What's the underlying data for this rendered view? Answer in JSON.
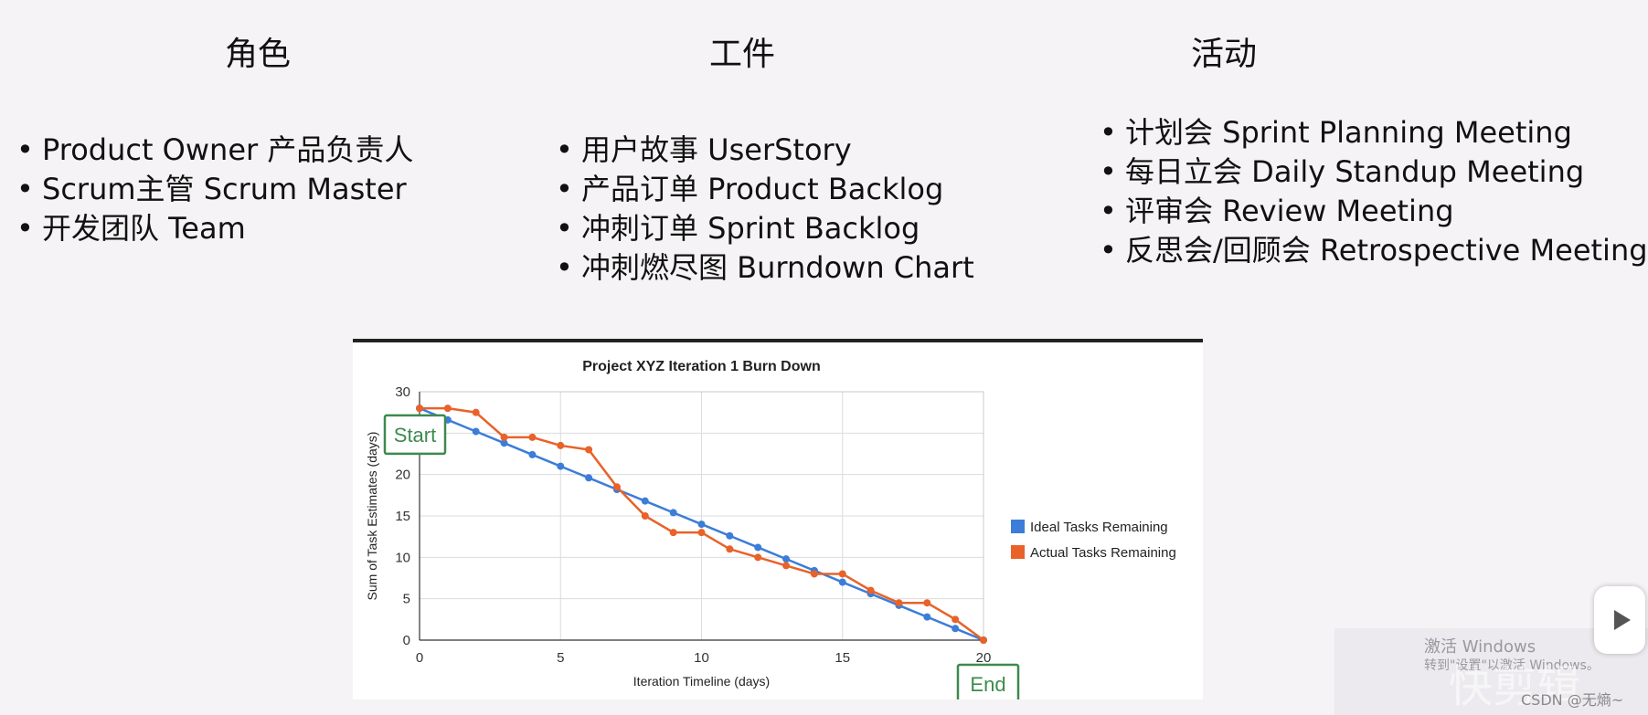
{
  "columns": [
    {
      "title": "角色",
      "items": [
        "Product Owner 产品负责人",
        "Scrum主管 Scrum Master",
        "开发团队 Team"
      ]
    },
    {
      "title": "工件",
      "items": [
        "用户故事 UserStory",
        "产品订单 Product Backlog",
        "冲刺订单 Sprint Backlog",
        "冲刺燃尽图 Burndown Chart"
      ]
    },
    {
      "title": "活动",
      "items": [
        "计划会 Sprint Planning Meeting",
        "每日立会 Daily Standup Meeting",
        "评审会 Review Meeting",
        "反思会/回顾会 Retrospective Meeting"
      ]
    }
  ],
  "chart_data": {
    "type": "line",
    "title": "Project XYZ Iteration 1 Burn Down",
    "xlabel": "Iteration Timeline (days)",
    "ylabel": "Sum of Task Estimates (days)",
    "xlim": [
      0,
      20
    ],
    "ylim": [
      0,
      30
    ],
    "xticks": [
      0,
      5,
      10,
      15,
      20
    ],
    "yticks": [
      0,
      5,
      10,
      15,
      20,
      25,
      30
    ],
    "grid": true,
    "legend_position": "right",
    "x": [
      0,
      1,
      2,
      3,
      4,
      5,
      6,
      7,
      8,
      9,
      10,
      11,
      12,
      13,
      14,
      15,
      16,
      17,
      18,
      19,
      20
    ],
    "series": [
      {
        "name": "Ideal Tasks Remaining",
        "color": "#3b7dd8",
        "values": [
          28,
          26.6,
          25.2,
          23.8,
          22.4,
          21,
          19.6,
          18.2,
          16.8,
          15.4,
          14,
          12.6,
          11.2,
          9.8,
          8.4,
          7,
          5.6,
          4.2,
          2.8,
          1.4,
          0
        ]
      },
      {
        "name": "Actual Tasks Remaining",
        "color": "#e8622a",
        "values": [
          28,
          28,
          27.5,
          24.5,
          24.5,
          23.5,
          23,
          18.5,
          15,
          13,
          13,
          11,
          10,
          9,
          8,
          8,
          6,
          4.5,
          4.5,
          2.5,
          0
        ]
      }
    ],
    "annotations": [
      {
        "text": "Start",
        "x": 0,
        "y": 23.5
      },
      {
        "text": "End",
        "x": 20,
        "y": 0
      }
    ]
  },
  "watermark": {
    "activate_title": "激活 Windows",
    "activate_sub": "转到\"设置\"以激活 Windows。",
    "brand": "快剪辑",
    "credit": "CSDN @无熵~"
  }
}
